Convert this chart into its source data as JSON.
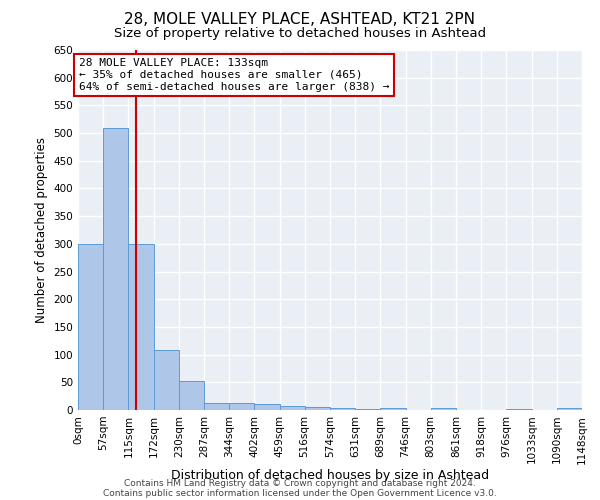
{
  "title": "28, MOLE VALLEY PLACE, ASHTEAD, KT21 2PN",
  "subtitle": "Size of property relative to detached houses in Ashtead",
  "xlabel": "Distribution of detached houses by size in Ashtead",
  "ylabel": "Number of detached properties",
  "bin_edges": [
    0,
    57,
    115,
    172,
    230,
    287,
    344,
    402,
    459,
    516,
    574,
    631,
    689,
    746,
    803,
    861,
    918,
    976,
    1033,
    1090,
    1148
  ],
  "bar_heights": [
    300,
    510,
    300,
    108,
    53,
    12,
    13,
    11,
    7,
    5,
    3,
    1,
    4,
    0,
    3,
    0,
    0,
    2,
    0,
    3
  ],
  "bar_color": "#aec6e8",
  "bar_edge_color": "#5b9bd5",
  "property_size": 133,
  "vline_color": "#cc0000",
  "annotation_line1": "28 MOLE VALLEY PLACE: 133sqm",
  "annotation_line2": "← 35% of detached houses are smaller (465)",
  "annotation_line3": "64% of semi-detached houses are larger (838) →",
  "annotation_box_color": "#cc0000",
  "ylim": [
    0,
    650
  ],
  "yticks": [
    0,
    50,
    100,
    150,
    200,
    250,
    300,
    350,
    400,
    450,
    500,
    550,
    600,
    650
  ],
  "bg_color": "#eaeef5",
  "grid_color": "#ffffff",
  "footer_line1": "Contains HM Land Registry data © Crown copyright and database right 2024.",
  "footer_line2": "Contains public sector information licensed under the Open Government Licence v3.0.",
  "title_fontsize": 11,
  "subtitle_fontsize": 9.5,
  "xlabel_fontsize": 9,
  "ylabel_fontsize": 8.5,
  "tick_fontsize": 7.5,
  "annotation_fontsize": 8,
  "footer_fontsize": 6.5
}
